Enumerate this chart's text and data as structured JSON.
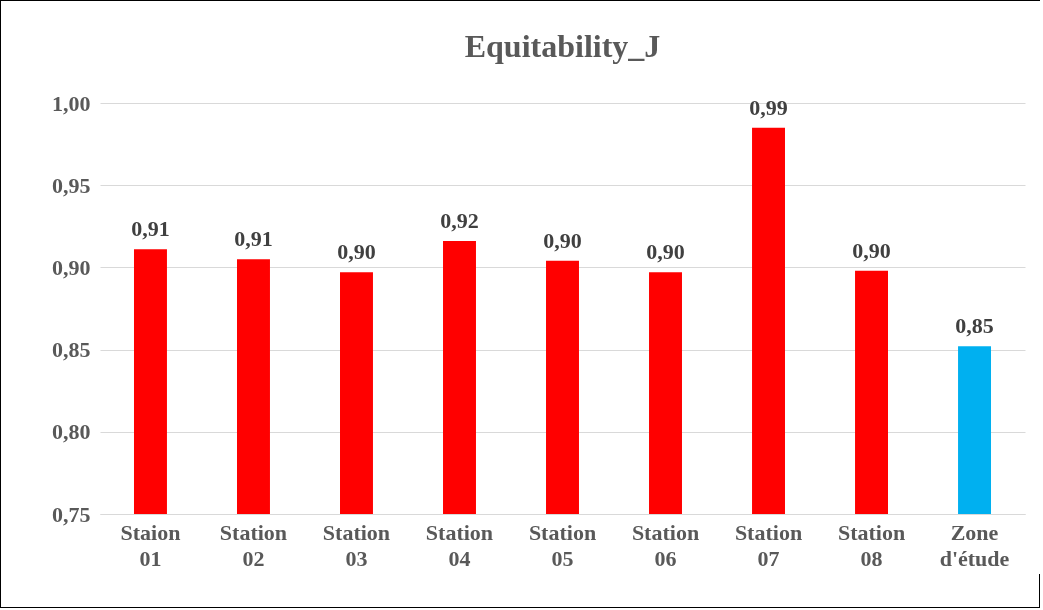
{
  "chart_data": {
    "type": "bar",
    "title": "Equitability_J",
    "categories": [
      "Staion 01",
      "Station 02",
      "Station 03",
      "Station 04",
      "Station 05",
      "Station 06",
      "Station 07",
      "Station 08",
      "Zone d'étude"
    ],
    "values": [
      0.911,
      0.905,
      0.897,
      0.916,
      0.904,
      0.897,
      0.985,
      0.898,
      0.852
    ],
    "colors": [
      "#ff0000",
      "#ff0000",
      "#ff0000",
      "#ff0000",
      "#ff0000",
      "#ff0000",
      "#ff0000",
      "#ff0000",
      "#00b0f0"
    ],
    "value_labels": [
      "0,91",
      "0,91",
      "0,90",
      "0,92",
      "0,90",
      "0,90",
      "0,99",
      "0,90",
      "0,85"
    ],
    "ylim": [
      0.75,
      1.0
    ],
    "yticks": [
      {
        "value": 0.75,
        "label": "0,75"
      },
      {
        "value": 0.8,
        "label": "0,80"
      },
      {
        "value": 0.85,
        "label": "0,85"
      },
      {
        "value": 0.9,
        "label": "0,90"
      },
      {
        "value": 0.95,
        "label": "0,95"
      },
      {
        "value": 1.0,
        "label": "1,00"
      }
    ],
    "grid": "y"
  }
}
